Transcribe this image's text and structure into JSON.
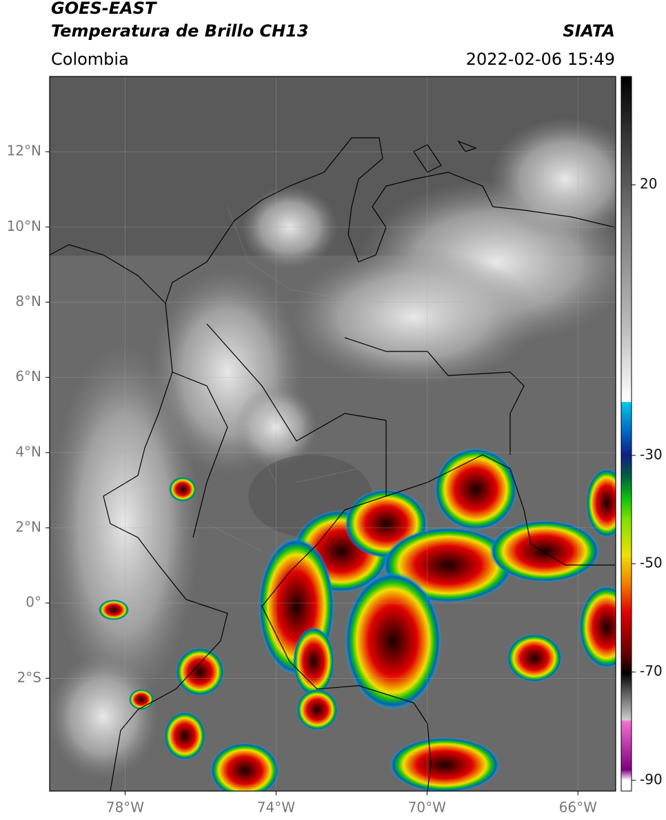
{
  "header": {
    "satellite": "GOES-EAST",
    "product": "Temperatura de Brillo CH13",
    "region": "Colombia",
    "source": "SIATA",
    "datetime": "2022-02-06 15:49"
  },
  "map": {
    "lon_range": [
      -80,
      -65
    ],
    "lat_range": [
      -5,
      14
    ],
    "lon_ticks": [
      {
        "value": -78,
        "label": "78°W"
      },
      {
        "value": -74,
        "label": "74°W"
      },
      {
        "value": -70,
        "label": "70°W"
      },
      {
        "value": -66,
        "label": "66°W"
      }
    ],
    "lat_ticks": [
      {
        "value": 12,
        "label": "12°N"
      },
      {
        "value": 10,
        "label": "10°N"
      },
      {
        "value": 8,
        "label": "8°N"
      },
      {
        "value": 6,
        "label": "6°N"
      },
      {
        "value": 4,
        "label": "4°N"
      },
      {
        "value": 2,
        "label": "2°N"
      },
      {
        "value": 0,
        "label": "0°"
      },
      {
        "value": -2,
        "label": "2°S"
      }
    ]
  },
  "colorbar": {
    "range": [
      -92,
      40
    ],
    "ticks": [
      20,
      -30,
      -50,
      -70,
      -90
    ]
  }
}
